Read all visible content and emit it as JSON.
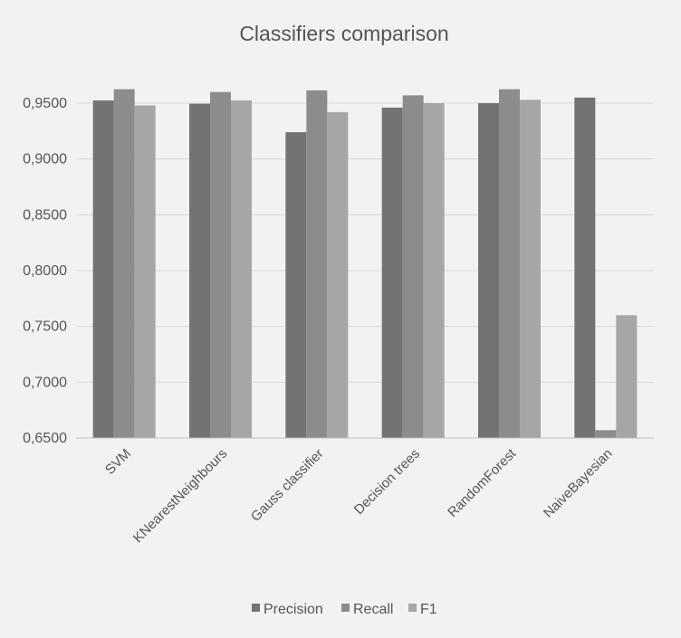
{
  "chart_data": {
    "type": "bar",
    "title": "Classifiers comparison",
    "xlabel": "",
    "ylabel": "",
    "ylim": [
      0.65,
      0.98
    ],
    "yticks": [
      "0,6500",
      "0,7000",
      "0,7500",
      "0,8000",
      "0,8500",
      "0,9000",
      "0,9500"
    ],
    "ytick_values": [
      0.65,
      0.7,
      0.75,
      0.8,
      0.85,
      0.9,
      0.95
    ],
    "grid": true,
    "legend_position": "bottom",
    "categories": [
      "SVM",
      "KNearestNeighbours",
      "Gauss classifier",
      "Decision trees",
      "RandomForest",
      "NaiveBayesian"
    ],
    "series": [
      {
        "name": "Precision",
        "color": "#737373",
        "values": [
          0.9525,
          0.9495,
          0.924,
          0.946,
          0.95,
          0.955
        ]
      },
      {
        "name": "Recall",
        "color": "#8c8c8c",
        "values": [
          0.9625,
          0.96,
          0.9615,
          0.957,
          0.9625,
          0.657
        ]
      },
      {
        "name": "F1",
        "color": "#a6a6a6",
        "values": [
          0.948,
          0.9525,
          0.942,
          0.95,
          0.953,
          0.76
        ]
      }
    ]
  }
}
